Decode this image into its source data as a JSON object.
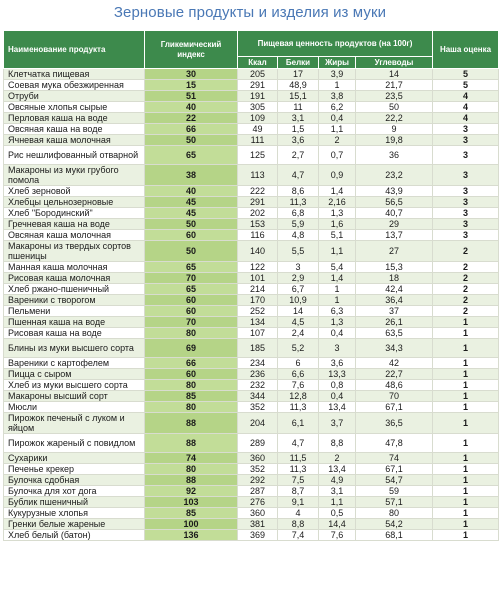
{
  "title": "Зерновые продукты и изделия из муки",
  "headers": {
    "name": "Наименование продукта",
    "gi": "Гликемический индекс",
    "nutrition": "Пищевая ценность продуктов (на 100г)",
    "kcal": "Ккал",
    "protein": "Белки",
    "fat": "Жиры",
    "carbs": "Углеводы",
    "score": "Наша оценка"
  },
  "rows": [
    {
      "name": "Клетчатка пищевая",
      "gi": "30",
      "kcal": "205",
      "protein": "17",
      "fat": "3,9",
      "carbs": "14",
      "score": "5"
    },
    {
      "name": "Соевая мука обезжиренная",
      "gi": "15",
      "kcal": "291",
      "protein": "48,9",
      "fat": "1",
      "carbs": "21,7",
      "score": "5"
    },
    {
      "name": "Отруби",
      "gi": "51",
      "kcal": "191",
      "protein": "15,1",
      "fat": "3,8",
      "carbs": "23,5",
      "score": "4"
    },
    {
      "name": "Овсяные хлопья сырые",
      "gi": "40",
      "kcal": "305",
      "protein": "11",
      "fat": "6,2",
      "carbs": "50",
      "score": "4"
    },
    {
      "name": "Перловая каша на воде",
      "gi": "22",
      "kcal": "109",
      "protein": "3,1",
      "fat": "0,4",
      "carbs": "22,2",
      "score": "4"
    },
    {
      "name": "Овсяная каша на воде",
      "gi": "66",
      "kcal": "49",
      "protein": "1,5",
      "fat": "1,1",
      "carbs": "9",
      "score": "3"
    },
    {
      "name": "Ячневая каша молочная",
      "gi": "50",
      "kcal": "111",
      "protein": "3,6",
      "fat": "2",
      "carbs": "19,8",
      "score": "3"
    },
    {
      "name": "Рис нешлифованный отварной",
      "gi": "65",
      "kcal": "125",
      "protein": "2,7",
      "fat": "0,7",
      "carbs": "36",
      "score": "3"
    },
    {
      "name": "Макароны из муки грубого помола",
      "gi": "38",
      "kcal": "113",
      "protein": "4,7",
      "fat": "0,9",
      "carbs": "23,2",
      "score": "3"
    },
    {
      "name": "Хлеб зерновой",
      "gi": "40",
      "kcal": "222",
      "protein": "8,6",
      "fat": "1,4",
      "carbs": "43,9",
      "score": "3"
    },
    {
      "name": "Хлебцы цельнозерновые",
      "gi": "45",
      "kcal": "291",
      "protein": "11,3",
      "fat": "2,16",
      "carbs": "56,5",
      "score": "3"
    },
    {
      "name": "Хлеб \"Бородинский\"",
      "gi": "45",
      "kcal": "202",
      "protein": "6,8",
      "fat": "1,3",
      "carbs": "40,7",
      "score": "3"
    },
    {
      "name": "Гречневая каша на воде",
      "gi": "50",
      "kcal": "153",
      "protein": "5,9",
      "fat": "1,6",
      "carbs": "29",
      "score": "3"
    },
    {
      "name": "Овсяная каша молочная",
      "gi": "60",
      "kcal": "116",
      "protein": "4,8",
      "fat": "5,1",
      "carbs": "13,7",
      "score": "3"
    },
    {
      "name": "Макароны из твердых сортов пшеницы",
      "gi": "50",
      "kcal": "140",
      "protein": "5,5",
      "fat": "1,1",
      "carbs": "27",
      "score": "2"
    },
    {
      "name": "Манная каша молочная",
      "gi": "65",
      "kcal": "122",
      "protein": "3",
      "fat": "5,4",
      "carbs": "15,3",
      "score": "2"
    },
    {
      "name": "Рисовая каша молочная",
      "gi": "70",
      "kcal": "101",
      "protein": "2,9",
      "fat": "1,4",
      "carbs": "18",
      "score": "2"
    },
    {
      "name": "Хлеб ржано-пшеничный",
      "gi": "65",
      "kcal": "214",
      "protein": "6,7",
      "fat": "1",
      "carbs": "42,4",
      "score": "2"
    },
    {
      "name": "Вареники с творогом",
      "gi": "60",
      "kcal": "170",
      "protein": "10,9",
      "fat": "1",
      "carbs": "36,4",
      "score": "2"
    },
    {
      "name": "Пельмени",
      "gi": "60",
      "kcal": "252",
      "protein": "14",
      "fat": "6,3",
      "carbs": "37",
      "score": "2"
    },
    {
      "name": "Пшенная каша на воде",
      "gi": "70",
      "kcal": "134",
      "protein": "4,5",
      "fat": "1,3",
      "carbs": "26,1",
      "score": "1"
    },
    {
      "name": "Рисовая каша на воде",
      "gi": "80",
      "kcal": "107",
      "protein": "2,4",
      "fat": "0,4",
      "carbs": "63,5",
      "score": "1"
    },
    {
      "name": "Блины из муки высшего сорта",
      "gi": "69",
      "kcal": "185",
      "protein": "5,2",
      "fat": "3",
      "carbs": "34,3",
      "score": "1"
    },
    {
      "name": "Вареники с картофелем",
      "gi": "66",
      "kcal": "234",
      "protein": "6",
      "fat": "3,6",
      "carbs": "42",
      "score": "1"
    },
    {
      "name": "Пицца с сыром",
      "gi": "60",
      "kcal": "236",
      "protein": "6,6",
      "fat": "13,3",
      "carbs": "22,7",
      "score": "1"
    },
    {
      "name": "Хлеб из муки высшего сорта",
      "gi": "80",
      "kcal": "232",
      "protein": "7,6",
      "fat": "0,8",
      "carbs": "48,6",
      "score": "1"
    },
    {
      "name": "Макароны высший сорт",
      "gi": "85",
      "kcal": "344",
      "protein": "12,8",
      "fat": "0,4",
      "carbs": "70",
      "score": "1"
    },
    {
      "name": "Мюсли",
      "gi": "80",
      "kcal": "352",
      "protein": "11,3",
      "fat": "13,4",
      "carbs": "67,1",
      "score": "1"
    },
    {
      "name": "Пирожок печеный с луком и яйцом",
      "gi": "88",
      "kcal": "204",
      "protein": "6,1",
      "fat": "3,7",
      "carbs": "36,5",
      "score": "1"
    },
    {
      "name": "Пирожок жареный с повидлом",
      "gi": "88",
      "kcal": "289",
      "protein": "4,7",
      "fat": "8,8",
      "carbs": "47,8",
      "score": "1"
    },
    {
      "name": "Сухарики",
      "gi": "74",
      "kcal": "360",
      "protein": "11,5",
      "fat": "2",
      "carbs": "74",
      "score": "1"
    },
    {
      "name": "Печенье крекер",
      "gi": "80",
      "kcal": "352",
      "protein": "11,3",
      "fat": "13,4",
      "carbs": "67,1",
      "score": "1"
    },
    {
      "name": "Булочка сдобная",
      "gi": "88",
      "kcal": "292",
      "protein": "7,5",
      "fat": "4,9",
      "carbs": "54,7",
      "score": "1"
    },
    {
      "name": "Булочка для хот дога",
      "gi": "92",
      "kcal": "287",
      "protein": "8,7",
      "fat": "3,1",
      "carbs": "59",
      "score": "1"
    },
    {
      "name": "Бублик пшеничный",
      "gi": "103",
      "kcal": "276",
      "protein": "9,1",
      "fat": "1,1",
      "carbs": "57,1",
      "score": "1"
    },
    {
      "name": "Кукурузные хлопья",
      "gi": "85",
      "kcal": "360",
      "protein": "4",
      "fat": "0,5",
      "carbs": "80",
      "score": "1"
    },
    {
      "name": "Гренки белые жареные",
      "gi": "100",
      "kcal": "381",
      "protein": "8,8",
      "fat": "14,4",
      "carbs": "54,2",
      "score": "1"
    },
    {
      "name": "Хлеб белый (батон)",
      "gi": "136",
      "kcal": "369",
      "protein": "7,4",
      "fat": "7,6",
      "carbs": "68,1",
      "score": "1"
    }
  ]
}
